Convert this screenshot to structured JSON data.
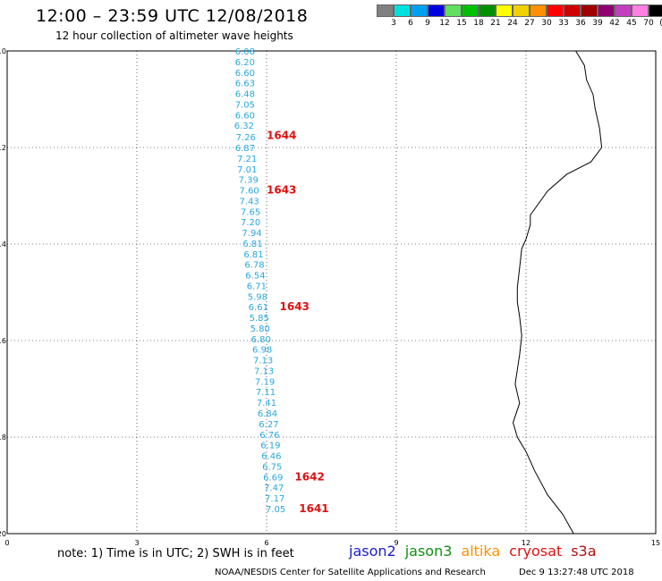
{
  "header": {
    "title": "12:00 – 23:59 UTC 12/08/2018",
    "subtitle": "12 hour collection of altimeter wave heights"
  },
  "colorbar": {
    "colors": [
      "#808080",
      "#00e0e0",
      "#00a0f0",
      "#0000e0",
      "#60e060",
      "#00c000",
      "#009000",
      "#ffff00",
      "#f0d000",
      "#ff9000",
      "#ff0000",
      "#d00000",
      "#a00000",
      "#900070",
      "#c040c0",
      "#ff80e0",
      "#000000"
    ],
    "labels": [
      "3",
      "6",
      "9",
      "12",
      "15",
      "18",
      "21",
      "24",
      "27",
      "30",
      "33",
      "36",
      "39",
      "42",
      "45",
      "70",
      "(ft)"
    ]
  },
  "axes": {
    "x_ticks": [
      "0",
      "3",
      "6",
      "9",
      "12",
      "15"
    ],
    "y_ticks": [
      "-10",
      "-12",
      "-14",
      "-16",
      "-18",
      "-20"
    ]
  },
  "swh_points": [
    {
      "lon": 5.5,
      "lat": -10.0,
      "value": "6.08"
    },
    {
      "lon": 5.5,
      "lat": -10.22,
      "value": "6.20"
    },
    {
      "lon": 5.5,
      "lat": -10.44,
      "value": "6.60"
    },
    {
      "lon": 5.5,
      "lat": -10.66,
      "value": "6.63"
    },
    {
      "lon": 5.5,
      "lat": -10.88,
      "value": "6.48"
    },
    {
      "lon": 5.5,
      "lat": -11.1,
      "value": "7.05"
    },
    {
      "lon": 5.5,
      "lat": -11.32,
      "value": "6.60"
    },
    {
      "lon": 5.48,
      "lat": -11.54,
      "value": "6.32"
    },
    {
      "lon": 5.52,
      "lat": -11.78,
      "value": "7.26"
    },
    {
      "lon": 5.5,
      "lat": -12.0,
      "value": "6.87"
    },
    {
      "lon": 5.55,
      "lat": -12.22,
      "value": "7.21"
    },
    {
      "lon": 5.55,
      "lat": -12.44,
      "value": "7.01"
    },
    {
      "lon": 5.58,
      "lat": -12.66,
      "value": "7.39"
    },
    {
      "lon": 5.6,
      "lat": -12.88,
      "value": "7.60"
    },
    {
      "lon": 5.6,
      "lat": -13.1,
      "value": "7.43"
    },
    {
      "lon": 5.63,
      "lat": -13.32,
      "value": "7.65"
    },
    {
      "lon": 5.63,
      "lat": -13.54,
      "value": "7.20"
    },
    {
      "lon": 5.66,
      "lat": -13.76,
      "value": "7.94"
    },
    {
      "lon": 5.68,
      "lat": -13.98,
      "value": "6.81"
    },
    {
      "lon": 5.7,
      "lat": -14.2,
      "value": "6.81"
    },
    {
      "lon": 5.72,
      "lat": -14.42,
      "value": "6.78"
    },
    {
      "lon": 5.74,
      "lat": -14.64,
      "value": "6.54"
    },
    {
      "lon": 5.77,
      "lat": -14.86,
      "value": "6.71"
    },
    {
      "lon": 5.79,
      "lat": -15.08,
      "value": "5.98"
    },
    {
      "lon": 5.81,
      "lat": -15.3,
      "value": "6.61"
    },
    {
      "lon": 5.83,
      "lat": -15.52,
      "value": "5.85"
    },
    {
      "lon": 5.85,
      "lat": -15.74,
      "value": "5.80"
    },
    {
      "lon": 5.87,
      "lat": -15.96,
      "value": "6.80"
    },
    {
      "lon": 5.9,
      "lat": -16.18,
      "value": "6.98"
    },
    {
      "lon": 5.92,
      "lat": -16.4,
      "value": "7.13"
    },
    {
      "lon": 5.94,
      "lat": -16.62,
      "value": "7.13"
    },
    {
      "lon": 5.96,
      "lat": -16.84,
      "value": "7.19"
    },
    {
      "lon": 5.98,
      "lat": -17.06,
      "value": "7.11"
    },
    {
      "lon": 6.0,
      "lat": -17.28,
      "value": "7.41"
    },
    {
      "lon": 6.02,
      "lat": -17.5,
      "value": "6.84"
    },
    {
      "lon": 6.05,
      "lat": -17.72,
      "value": "6.27"
    },
    {
      "lon": 6.07,
      "lat": -17.94,
      "value": "6.76"
    },
    {
      "lon": 6.09,
      "lat": -18.16,
      "value": "6.19"
    },
    {
      "lon": 6.11,
      "lat": -18.38,
      "value": "6.46"
    },
    {
      "lon": 6.13,
      "lat": -18.6,
      "value": "6.75"
    },
    {
      "lon": 6.15,
      "lat": -18.82,
      "value": "6.69"
    },
    {
      "lon": 6.17,
      "lat": -19.04,
      "value": "7.47"
    },
    {
      "lon": 6.19,
      "lat": -19.26,
      "value": "7.17"
    },
    {
      "lon": 6.21,
      "lat": -19.48,
      "value": "7.05"
    }
  ],
  "pass_labels": [
    {
      "lon": 6.0,
      "lat": -11.75,
      "text": "1644"
    },
    {
      "lon": 6.0,
      "lat": -12.88,
      "text": "1643"
    },
    {
      "lon": 6.3,
      "lat": -15.3,
      "text": "1643"
    },
    {
      "lon": 6.65,
      "lat": -18.82,
      "text": "1642"
    },
    {
      "lon": 6.75,
      "lat": -19.48,
      "text": "1641"
    }
  ],
  "coastline": [
    [
      13.15,
      -10.0
    ],
    [
      13.35,
      -10.3
    ],
    [
      13.4,
      -10.6
    ],
    [
      13.55,
      -10.9
    ],
    [
      13.6,
      -11.2
    ],
    [
      13.7,
      -11.6
    ],
    [
      13.75,
      -12.0
    ],
    [
      13.5,
      -12.3
    ],
    [
      12.95,
      -12.55
    ],
    [
      12.5,
      -12.9
    ],
    [
      12.1,
      -13.4
    ],
    [
      12.1,
      -13.6
    ],
    [
      12.0,
      -13.9
    ],
    [
      11.9,
      -14.1
    ],
    [
      11.85,
      -14.5
    ],
    [
      11.8,
      -14.9
    ],
    [
      11.8,
      -15.2
    ],
    [
      11.85,
      -15.5
    ],
    [
      11.9,
      -15.9
    ],
    [
      11.85,
      -16.3
    ],
    [
      11.8,
      -16.6
    ],
    [
      11.75,
      -16.9
    ],
    [
      11.85,
      -17.3
    ],
    [
      11.7,
      -17.7
    ],
    [
      11.8,
      -18.0
    ],
    [
      12.0,
      -18.3
    ],
    [
      12.2,
      -18.7
    ],
    [
      12.5,
      -19.2
    ],
    [
      12.85,
      -19.6
    ],
    [
      13.1,
      -20.0
    ]
  ],
  "note": "note: 1) Time is in UTC; 2) SWH is in feet",
  "satellites": [
    {
      "name": "jason2",
      "color": "#1a1ad0"
    },
    {
      "name": "jason3",
      "color": "#109010"
    },
    {
      "name": "altika",
      "color": "#ff9000"
    },
    {
      "name": "cryosat",
      "color": "#e01010"
    },
    {
      "name": "s3a",
      "color": "#b01010"
    }
  ],
  "footer": {
    "credit": "NOAA/NESDIS Center for Satellite Applications and Research",
    "timestamp": "Dec  9 13:27:48 UTC 2018"
  }
}
